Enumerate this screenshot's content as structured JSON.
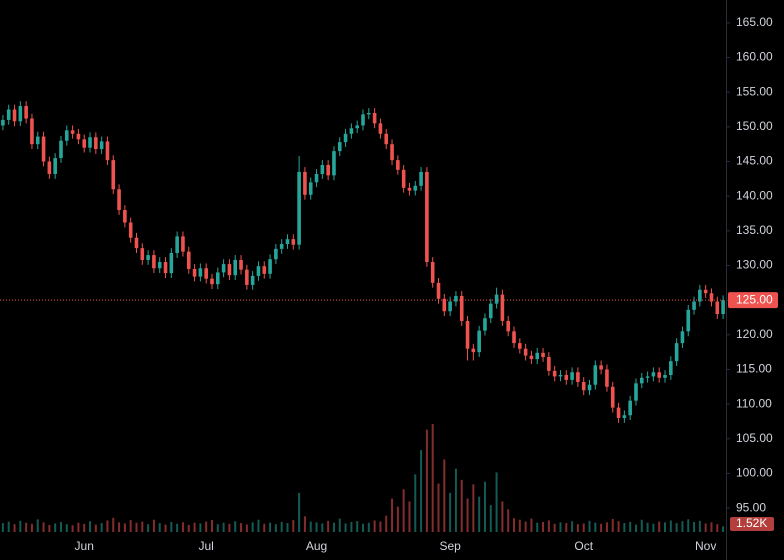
{
  "chart_data": {
    "type": "candlestick",
    "categories": [
      null,
      null,
      null,
      null,
      null,
      null,
      null,
      null,
      null,
      null,
      null,
      null,
      null,
      null,
      "Jun",
      null,
      null,
      null,
      null,
      null,
      null,
      null,
      null,
      null,
      null,
      null,
      null,
      null,
      null,
      null,
      null,
      null,
      null,
      null,
      null,
      "Jul",
      null,
      null,
      null,
      null,
      null,
      null,
      null,
      null,
      null,
      null,
      null,
      null,
      null,
      null,
      null,
      null,
      null,
      null,
      "Aug",
      null,
      null,
      null,
      null,
      null,
      null,
      null,
      null,
      null,
      null,
      null,
      null,
      null,
      null,
      null,
      null,
      null,
      null,
      null,
      null,
      null,
      null,
      "Sep",
      null,
      null,
      null,
      null,
      null,
      null,
      null,
      null,
      null,
      null,
      null,
      null,
      null,
      null,
      null,
      null,
      null,
      null,
      null,
      null,
      null,
      null,
      "Oct",
      null,
      null,
      null,
      null,
      null,
      null,
      null,
      null,
      null,
      null,
      null,
      null,
      null,
      null,
      null,
      null,
      null,
      null,
      null,
      null,
      "Nov",
      null,
      null,
      null
    ],
    "open": [
      150.2,
      151.0,
      152.5,
      150.8,
      153.0,
      151.2,
      147.5,
      148.6,
      145.0,
      143.2,
      145.5,
      148.0,
      149.5,
      149.0,
      148.2,
      147.0,
      148.5,
      146.8,
      147.9,
      145.2,
      141.0,
      138.0,
      136.2,
      134.0,
      132.5,
      130.8,
      131.5,
      129.6,
      130.5,
      128.9,
      131.8,
      134.2,
      132.0,
      129.5,
      128.4,
      129.6,
      128.1,
      127.3,
      129.0,
      130.2,
      128.6,
      130.8,
      129.4,
      127.2,
      128.5,
      129.9,
      128.8,
      130.9,
      132.4,
      133.1,
      133.8,
      133.0,
      143.5,
      140.2,
      142.0,
      143.2,
      144.5,
      143.0,
      146.5,
      147.8,
      149.0,
      149.8,
      150.2,
      151.8,
      152.0,
      150.5,
      149.0,
      147.5,
      145.2,
      143.8,
      141.2,
      140.8,
      141.5,
      143.5,
      130.5,
      127.5,
      125.2,
      123.4,
      124.8,
      125.6,
      122.0,
      118.0,
      117.5,
      120.6,
      122.4,
      124.5,
      125.8,
      122.0,
      120.5,
      118.8,
      118.0,
      117.0,
      116.5,
      117.4,
      116.8,
      114.8,
      114.0,
      114.2,
      113.5,
      114.6,
      113.2,
      112.0,
      112.8,
      115.6,
      115.0,
      112.5,
      109.5,
      108.0,
      108.4,
      110.5,
      113.0,
      113.8,
      114.0,
      114.6,
      113.8,
      114.2,
      116.2,
      118.8,
      120.5,
      123.6,
      124.8,
      126.5,
      126.0,
      124.8,
      123.0
    ],
    "high": [
      151.7,
      153.2,
      153.2,
      153.7,
      153.7,
      151.9,
      149.3,
      149.3,
      145.7,
      146.2,
      148.7,
      150.2,
      150.2,
      149.7,
      148.9,
      149.2,
      149.2,
      148.6,
      148.6,
      145.9,
      141.7,
      138.7,
      136.9,
      134.7,
      133.2,
      132.2,
      132.2,
      131.2,
      131.2,
      132.5,
      134.9,
      134.9,
      132.7,
      130.2,
      130.3,
      130.3,
      128.8,
      129.7,
      130.9,
      130.9,
      131.5,
      131.5,
      130.1,
      129.2,
      130.6,
      130.6,
      131.6,
      133.1,
      133.8,
      134.5,
      134.5,
      145.8,
      144.2,
      142.7,
      143.9,
      145.2,
      145.2,
      147.2,
      148.5,
      149.7,
      150.5,
      150.9,
      152.5,
      152.7,
      152.7,
      151.2,
      149.7,
      148.2,
      145.9,
      144.5,
      141.9,
      142.2,
      144.2,
      144.2,
      131.2,
      128.2,
      125.9,
      125.5,
      126.3,
      126.3,
      122.7,
      118.7,
      121.3,
      123.1,
      125.2,
      126.8,
      126.5,
      122.7,
      121.2,
      119.5,
      118.7,
      117.7,
      118.1,
      118.1,
      117.5,
      115.5,
      114.9,
      114.9,
      115.3,
      115.3,
      113.9,
      113.5,
      116.3,
      116.3,
      115.7,
      113.2,
      110.2,
      109.1,
      111.2,
      113.7,
      114.5,
      114.7,
      115.3,
      115.3,
      114.9,
      116.9,
      119.5,
      121.2,
      124.3,
      125.5,
      127.2,
      127.2,
      126.7,
      125.5,
      125.7
    ],
    "low": [
      149.5,
      150.3,
      150.1,
      150.1,
      150.5,
      146.8,
      146.8,
      144.3,
      142.5,
      142.5,
      144.8,
      147.3,
      148.3,
      147.5,
      146.3,
      146.3,
      146.1,
      146.1,
      144.5,
      140.3,
      137.3,
      135.5,
      133.3,
      131.8,
      130.1,
      130.1,
      128.9,
      128.9,
      128.2,
      128.2,
      131.1,
      131.3,
      128.8,
      127.7,
      127.7,
      127.4,
      126.6,
      126.6,
      128.3,
      127.9,
      127.9,
      128.7,
      126.5,
      126.5,
      127.8,
      128.1,
      128.1,
      130.2,
      131.7,
      132.4,
      132.3,
      132.3,
      139.5,
      139.5,
      141.3,
      142.5,
      142.3,
      142.3,
      145.8,
      147.1,
      148.3,
      149.1,
      149.5,
      151.1,
      149.8,
      148.3,
      146.8,
      144.5,
      143.1,
      140.5,
      140.1,
      140.1,
      140.8,
      129.8,
      126.8,
      124.5,
      122.7,
      122.7,
      124.1,
      121.3,
      116.3,
      116.3,
      116.8,
      119.9,
      121.7,
      123.8,
      121.3,
      119.8,
      118.1,
      117.3,
      116.3,
      115.8,
      115.8,
      116.1,
      114.1,
      113.3,
      113.3,
      112.8,
      112.8,
      112.5,
      111.3,
      111.3,
      112.1,
      114.3,
      111.8,
      108.8,
      107.3,
      107.3,
      107.7,
      109.8,
      112.3,
      113.1,
      113.3,
      113.1,
      113.1,
      113.5,
      115.5,
      118.1,
      119.8,
      122.9,
      124.1,
      125.3,
      124.1,
      122.3,
      122.3
    ],
    "close": [
      151.0,
      152.5,
      150.8,
      153.0,
      151.2,
      147.5,
      148.6,
      145.0,
      143.2,
      145.5,
      148.0,
      149.5,
      149.0,
      148.2,
      147.0,
      148.5,
      146.8,
      147.9,
      145.2,
      141.0,
      138.0,
      136.2,
      134.0,
      132.5,
      130.8,
      131.5,
      129.6,
      130.5,
      128.9,
      131.8,
      134.2,
      132.0,
      129.5,
      128.4,
      129.6,
      128.1,
      127.3,
      129.0,
      130.2,
      128.6,
      130.8,
      129.4,
      127.2,
      128.5,
      129.9,
      128.8,
      130.9,
      132.4,
      133.1,
      133.8,
      133.0,
      143.5,
      140.2,
      142.0,
      143.2,
      144.5,
      143.0,
      146.5,
      147.8,
      149.0,
      149.8,
      150.2,
      151.8,
      152.0,
      150.5,
      149.0,
      147.5,
      145.2,
      143.8,
      141.2,
      140.8,
      141.5,
      143.5,
      130.5,
      127.5,
      125.2,
      123.4,
      124.8,
      125.6,
      122.0,
      118.0,
      117.5,
      120.6,
      122.4,
      124.5,
      125.8,
      122.0,
      120.5,
      118.8,
      118.0,
      117.0,
      116.5,
      117.4,
      116.8,
      114.8,
      114.0,
      114.2,
      113.5,
      114.6,
      113.2,
      112.0,
      112.8,
      115.6,
      115.0,
      112.5,
      109.5,
      108.0,
      108.4,
      110.5,
      113.0,
      113.8,
      114.0,
      114.6,
      113.8,
      114.2,
      116.2,
      118.8,
      120.5,
      123.6,
      124.8,
      126.5,
      126.0,
      124.8,
      123.0,
      125.0
    ],
    "volume": [
      2400,
      2800,
      2100,
      3000,
      2500,
      2200,
      3400,
      2600,
      1900,
      2300,
      2700,
      2100,
      1800,
      2500,
      2200,
      2900,
      2000,
      2400,
      3100,
      3800,
      2600,
      2300,
      3200,
      2500,
      2800,
      2100,
      3300,
      2400,
      2000,
      2700,
      2200,
      2600,
      1900,
      2500,
      2300,
      2800,
      3200,
      2100,
      2500,
      2200,
      2900,
      2400,
      2000,
      2600,
      3300,
      2200,
      2500,
      2100,
      2700,
      2400,
      3200,
      10500,
      4200,
      2800,
      2600,
      2300,
      3000,
      2500,
      3600,
      2300,
      2700,
      2900,
      2200,
      2500,
      3100,
      2800,
      4400,
      9000,
      6800,
      11500,
      8200,
      15500,
      22000,
      27500,
      29000,
      13000,
      19500,
      10500,
      17000,
      14000,
      9000,
      12800,
      9500,
      13500,
      7200,
      16000,
      8200,
      6100,
      3700,
      3300,
      2800,
      3600,
      2500,
      2700,
      3100,
      2200,
      2600,
      2400,
      2900,
      2100,
      2300,
      3000,
      2500,
      2200,
      2600,
      3500,
      2900,
      2400,
      2700,
      2000,
      3300,
      2500,
      2200,
      2800,
      2600,
      3100,
      2400,
      2900,
      3400,
      2700,
      3000,
      2300,
      2600,
      2100,
      1520
    ],
    "up_color": "#26a69a",
    "down_color": "#ef5350",
    "ylim": [
      90.4,
      168.3
    ],
    "yticks": [
      {
        "value": 95,
        "label": "95.00"
      },
      {
        "value": 100,
        "label": "100.00"
      },
      {
        "value": 105,
        "label": "105.00"
      },
      {
        "value": 110,
        "label": "110.00"
      },
      {
        "value": 115,
        "label": "115.00"
      },
      {
        "value": 120,
        "label": "120.00"
      },
      {
        "value": 125,
        "label": "125.00"
      },
      {
        "value": 130,
        "label": "130.00"
      },
      {
        "value": 135,
        "label": "135.00"
      },
      {
        "value": 140,
        "label": "140.00"
      },
      {
        "value": 145,
        "label": "145.00"
      },
      {
        "value": 150,
        "label": "150.00"
      },
      {
        "value": 155,
        "label": "155.00"
      },
      {
        "value": 160,
        "label": "160.00"
      },
      {
        "value": 165,
        "label": "165.00"
      }
    ],
    "last_price": {
      "value": 125,
      "label": "125.00"
    },
    "last_volume": {
      "value": 1520,
      "label": "1.52K"
    }
  }
}
